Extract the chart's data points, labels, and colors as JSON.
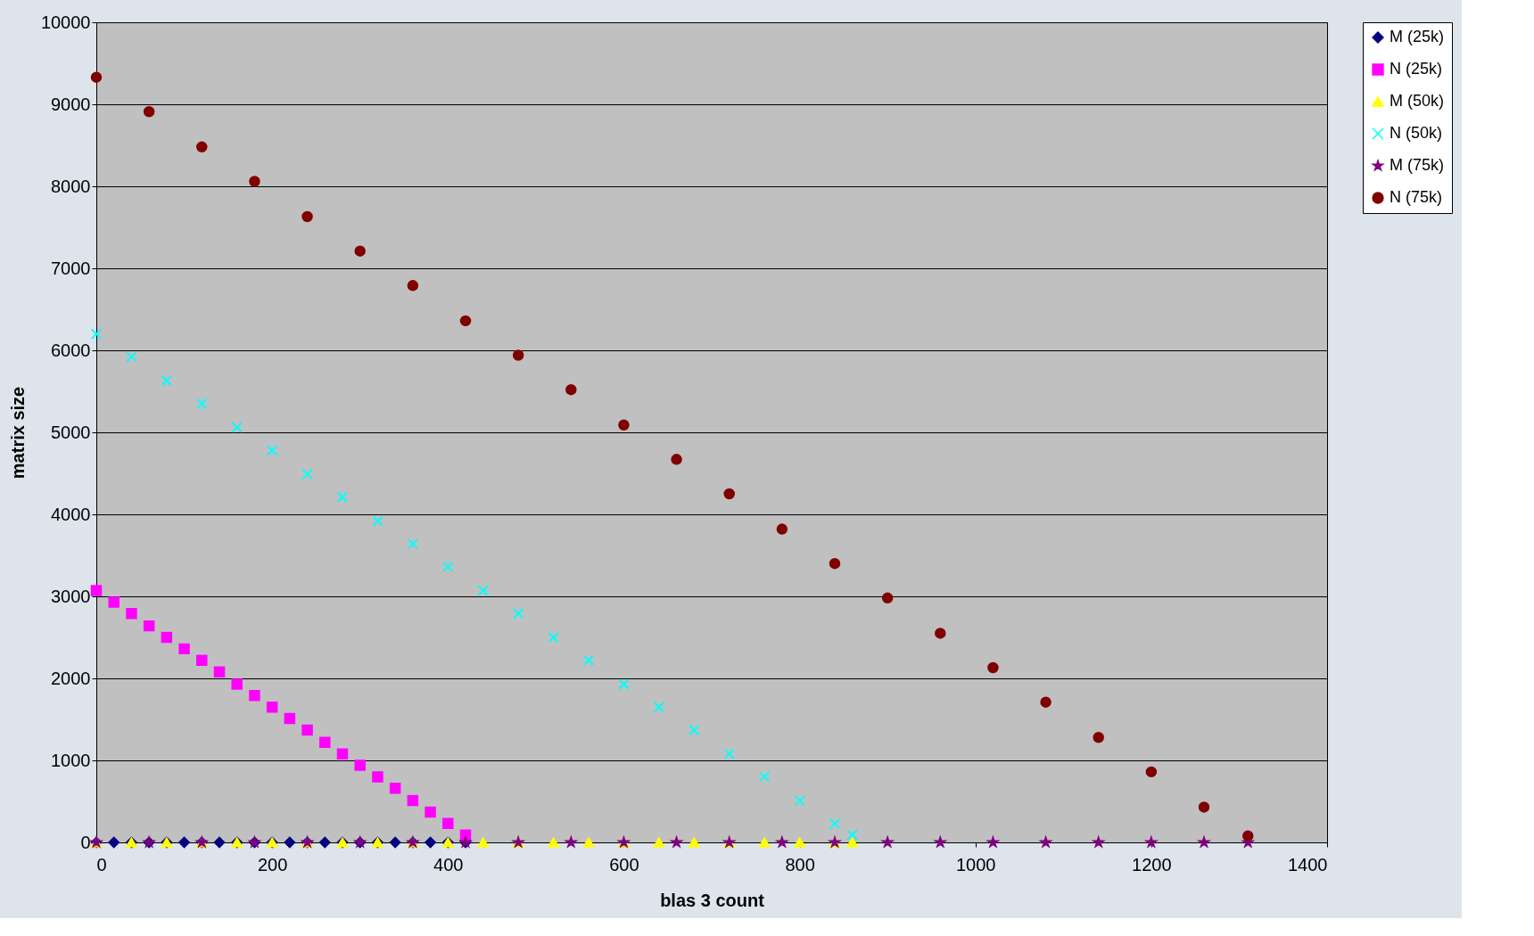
{
  "chart_data": {
    "type": "scatter",
    "xlabel": "blas 3 count",
    "ylabel": "matrix size",
    "xlim": [
      0,
      1400
    ],
    "xticks": [
      0,
      200,
      400,
      600,
      800,
      1000,
      1200,
      1400
    ],
    "ylim": [
      0,
      10000
    ],
    "yticks": [
      0,
      1000,
      2000,
      3000,
      4000,
      5000,
      6000,
      7000,
      8000,
      9000,
      10000
    ],
    "grid": "y",
    "legend": "right",
    "series": [
      {
        "name": "M (25k)",
        "color": "#000080",
        "marker": "diamond",
        "x": [
          0,
          20,
          40,
          60,
          80,
          100,
          120,
          140,
          160,
          180,
          200,
          220,
          240,
          260,
          280,
          300,
          320,
          340,
          360,
          380,
          400,
          420
        ],
        "values": [
          0,
          0,
          0,
          0,
          0,
          0,
          0,
          0,
          0,
          0,
          0,
          0,
          0,
          0,
          0,
          0,
          0,
          0,
          0,
          0,
          0,
          0
        ]
      },
      {
        "name": "N (25k)",
        "color": "#ff00ff",
        "marker": "square",
        "x": [
          0,
          20,
          40,
          60,
          80,
          100,
          120,
          140,
          160,
          180,
          200,
          220,
          240,
          260,
          280,
          300,
          320,
          340,
          360,
          380,
          400,
          420
        ],
        "values": [
          3070,
          2930,
          2790,
          2640,
          2500,
          2360,
          2220,
          2080,
          1930,
          1790,
          1650,
          1510,
          1370,
          1220,
          1080,
          940,
          800,
          660,
          510,
          370,
          230,
          90
        ]
      },
      {
        "name": "M (50k)",
        "color": "#ffff00",
        "marker": "triangle",
        "x": [
          0,
          40,
          80,
          120,
          160,
          200,
          240,
          280,
          320,
          360,
          400,
          440,
          480,
          520,
          560,
          600,
          640,
          680,
          720,
          760,
          800,
          840,
          860
        ],
        "values": [
          0,
          0,
          0,
          0,
          0,
          0,
          0,
          0,
          0,
          0,
          0,
          0,
          0,
          0,
          0,
          0,
          0,
          0,
          0,
          0,
          0,
          0,
          0
        ]
      },
      {
        "name": "N (50k)",
        "color": "#00ffff",
        "marker": "cross",
        "x": [
          0,
          40,
          80,
          120,
          160,
          200,
          240,
          280,
          320,
          360,
          400,
          440,
          480,
          520,
          560,
          600,
          640,
          680,
          720,
          760,
          800,
          840,
          860
        ],
        "values": [
          6200,
          5920,
          5630,
          5350,
          5060,
          4780,
          4490,
          4210,
          3920,
          3640,
          3360,
          3070,
          2790,
          2500,
          2220,
          1930,
          1650,
          1370,
          1080,
          800,
          510,
          230,
          90
        ]
      },
      {
        "name": "M (75k)",
        "color": "#800080",
        "marker": "star",
        "x": [
          0,
          60,
          120,
          180,
          240,
          300,
          360,
          420,
          480,
          540,
          600,
          660,
          720,
          780,
          840,
          900,
          960,
          1020,
          1080,
          1140,
          1200,
          1260,
          1310
        ],
        "values": [
          0,
          0,
          0,
          0,
          0,
          0,
          0,
          0,
          0,
          0,
          0,
          0,
          0,
          0,
          0,
          0,
          0,
          0,
          0,
          0,
          0,
          0,
          0
        ]
      },
      {
        "name": "N (75k)",
        "color": "#800000",
        "marker": "circle",
        "x": [
          0,
          60,
          120,
          180,
          240,
          300,
          360,
          420,
          480,
          540,
          600,
          660,
          720,
          780,
          840,
          900,
          960,
          1020,
          1080,
          1140,
          1200,
          1260,
          1310
        ],
        "values": [
          9330,
          8910,
          8480,
          8060,
          7630,
          7210,
          6790,
          6360,
          5940,
          5520,
          5090,
          4670,
          4250,
          3820,
          3400,
          2980,
          2550,
          2130,
          1710,
          1280,
          860,
          430,
          80
        ]
      }
    ]
  }
}
